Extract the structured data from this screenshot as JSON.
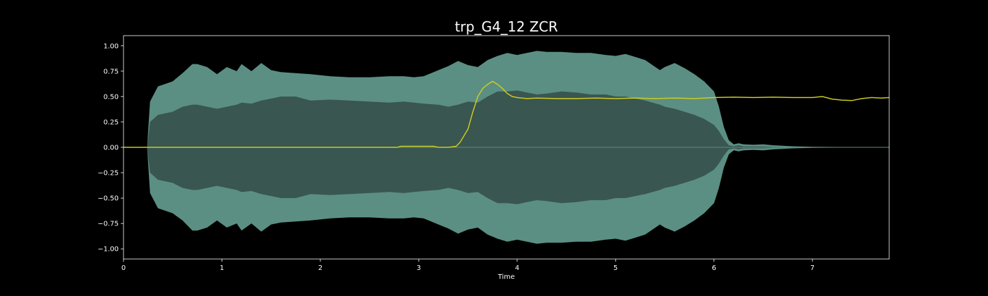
{
  "chart_data": {
    "type": "line",
    "title": "trp_G4_12 ZCR",
    "xlabel": "Time",
    "ylabel": "",
    "xlim": [
      0,
      7.78
    ],
    "ylim": [
      -1.1,
      1.1
    ],
    "xticks": [
      "0",
      "1",
      "2",
      "3",
      "4",
      "5",
      "6",
      "7"
    ],
    "yticks": [
      "−1.00",
      "−0.75",
      "−0.50",
      "−0.25",
      "0.00",
      "0.25",
      "0.50",
      "0.75",
      "1.00"
    ],
    "grid": false,
    "colors": {
      "background": "#000000",
      "axes": "#ffffff",
      "waveform_outer": "#5b8f83",
      "waveform_inner": "#3a5650",
      "zcr": "#cccc22"
    },
    "series": [
      {
        "kind": "waveform-envelope",
        "t": [
          0.24,
          0.27,
          0.35,
          0.5,
          0.6,
          0.7,
          0.75,
          0.85,
          0.95,
          1.05,
          1.15,
          1.2,
          1.3,
          1.4,
          1.5,
          1.6,
          1.75,
          1.9,
          2.1,
          2.3,
          2.5,
          2.7,
          2.85,
          2.95,
          3.05,
          3.2,
          3.3,
          3.4,
          3.5,
          3.6,
          3.7,
          3.8,
          3.9,
          4.0,
          4.1,
          4.2,
          4.3,
          4.45,
          4.6,
          4.75,
          4.9,
          5.0,
          5.1,
          5.2,
          5.3,
          5.45,
          5.5,
          5.6,
          5.7,
          5.8,
          5.9,
          6.0,
          6.05,
          6.1,
          6.15,
          6.2,
          6.25,
          6.3,
          6.4,
          6.5,
          6.6,
          6.8,
          7.0,
          7.78
        ],
        "outer_top": [
          0.0,
          0.45,
          0.6,
          0.65,
          0.73,
          0.82,
          0.82,
          0.79,
          0.72,
          0.79,
          0.75,
          0.82,
          0.75,
          0.83,
          0.76,
          0.74,
          0.73,
          0.72,
          0.7,
          0.69,
          0.69,
          0.7,
          0.7,
          0.69,
          0.7,
          0.76,
          0.8,
          0.85,
          0.81,
          0.79,
          0.86,
          0.9,
          0.93,
          0.91,
          0.93,
          0.95,
          0.94,
          0.94,
          0.93,
          0.93,
          0.91,
          0.9,
          0.92,
          0.89,
          0.86,
          0.76,
          0.79,
          0.83,
          0.78,
          0.72,
          0.65,
          0.55,
          0.4,
          0.2,
          0.07,
          0.03,
          0.04,
          0.03,
          0.025,
          0.03,
          0.02,
          0.01,
          0.005,
          0.0
        ],
        "inner_top": [
          0.0,
          0.25,
          0.32,
          0.35,
          0.4,
          0.42,
          0.42,
          0.4,
          0.38,
          0.4,
          0.42,
          0.44,
          0.43,
          0.46,
          0.48,
          0.5,
          0.5,
          0.46,
          0.47,
          0.46,
          0.45,
          0.44,
          0.45,
          0.44,
          0.43,
          0.42,
          0.4,
          0.42,
          0.45,
          0.44,
          0.5,
          0.55,
          0.55,
          0.56,
          0.54,
          0.52,
          0.53,
          0.55,
          0.54,
          0.52,
          0.52,
          0.5,
          0.5,
          0.48,
          0.46,
          0.42,
          0.4,
          0.38,
          0.35,
          0.32,
          0.28,
          0.22,
          0.16,
          0.08,
          0.02,
          0.01,
          0.02,
          0.01,
          0.01,
          0.01,
          0.005,
          0.003,
          0.0,
          0.0
        ],
        "outer_bottom": [
          0.0,
          -0.45,
          -0.6,
          -0.65,
          -0.72,
          -0.82,
          -0.82,
          -0.79,
          -0.72,
          -0.79,
          -0.75,
          -0.82,
          -0.75,
          -0.83,
          -0.76,
          -0.74,
          -0.73,
          -0.72,
          -0.7,
          -0.69,
          -0.69,
          -0.7,
          -0.7,
          -0.69,
          -0.7,
          -0.76,
          -0.8,
          -0.85,
          -0.81,
          -0.79,
          -0.86,
          -0.9,
          -0.93,
          -0.91,
          -0.93,
          -0.95,
          -0.94,
          -0.94,
          -0.93,
          -0.93,
          -0.91,
          -0.9,
          -0.92,
          -0.89,
          -0.86,
          -0.76,
          -0.79,
          -0.83,
          -0.78,
          -0.72,
          -0.65,
          -0.55,
          -0.4,
          -0.2,
          -0.07,
          -0.03,
          -0.04,
          -0.03,
          -0.025,
          -0.03,
          -0.02,
          -0.01,
          -0.005,
          0.0
        ],
        "inner_bottom": [
          0.0,
          -0.25,
          -0.32,
          -0.35,
          -0.4,
          -0.42,
          -0.42,
          -0.4,
          -0.38,
          -0.4,
          -0.42,
          -0.44,
          -0.43,
          -0.46,
          -0.48,
          -0.5,
          -0.5,
          -0.46,
          -0.47,
          -0.46,
          -0.45,
          -0.44,
          -0.45,
          -0.44,
          -0.43,
          -0.42,
          -0.4,
          -0.42,
          -0.45,
          -0.44,
          -0.5,
          -0.55,
          -0.55,
          -0.56,
          -0.54,
          -0.52,
          -0.53,
          -0.55,
          -0.54,
          -0.52,
          -0.52,
          -0.5,
          -0.5,
          -0.48,
          -0.46,
          -0.42,
          -0.4,
          -0.38,
          -0.35,
          -0.32,
          -0.28,
          -0.22,
          -0.16,
          -0.08,
          -0.02,
          -0.01,
          -0.02,
          -0.01,
          -0.01,
          -0.01,
          -0.005,
          -0.003,
          0.0,
          0.0
        ]
      },
      {
        "kind": "zcr-line",
        "x": [
          0.0,
          2.78,
          2.82,
          3.15,
          3.2,
          3.3,
          3.38,
          3.42,
          3.5,
          3.55,
          3.6,
          3.65,
          3.7,
          3.75,
          3.8,
          3.85,
          3.9,
          3.95,
          4.0,
          4.1,
          4.2,
          4.4,
          4.6,
          4.8,
          5.0,
          5.2,
          5.4,
          5.6,
          5.8,
          6.0,
          6.2,
          6.4,
          6.6,
          6.8,
          7.0,
          7.1,
          7.2,
          7.3,
          7.4,
          7.5,
          7.6,
          7.7,
          7.78
        ],
        "y": [
          0.0,
          0.0,
          0.01,
          0.01,
          0.0,
          0.0,
          0.01,
          0.05,
          0.18,
          0.35,
          0.5,
          0.58,
          0.62,
          0.65,
          0.62,
          0.58,
          0.53,
          0.5,
          0.49,
          0.48,
          0.485,
          0.48,
          0.48,
          0.485,
          0.48,
          0.485,
          0.48,
          0.485,
          0.48,
          0.49,
          0.495,
          0.49,
          0.495,
          0.49,
          0.49,
          0.5,
          0.475,
          0.465,
          0.46,
          0.48,
          0.49,
          0.485,
          0.49
        ]
      }
    ]
  }
}
